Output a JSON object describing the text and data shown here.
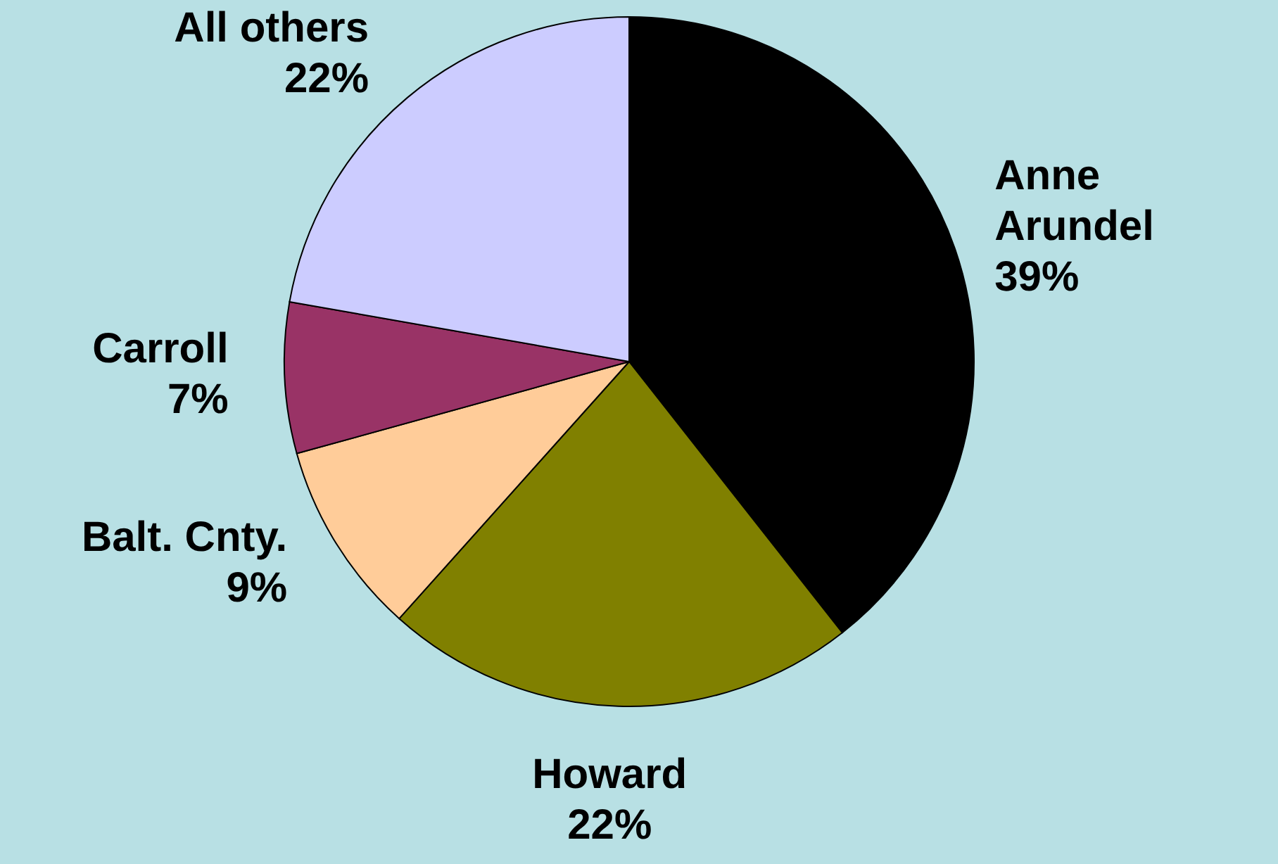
{
  "chart_data": {
    "type": "pie",
    "categories": [
      "Anne Arundel",
      "Howard",
      "Balt. Cnty.",
      "Carroll",
      "All others"
    ],
    "values": [
      39,
      22,
      9,
      7,
      22
    ],
    "colors": [
      "#000000",
      "#808000",
      "#ffcc99",
      "#993366",
      "#ccccff"
    ],
    "value_labels": [
      "39%",
      "22%",
      "9%",
      "7%",
      "22%"
    ],
    "legend": false
  }
}
